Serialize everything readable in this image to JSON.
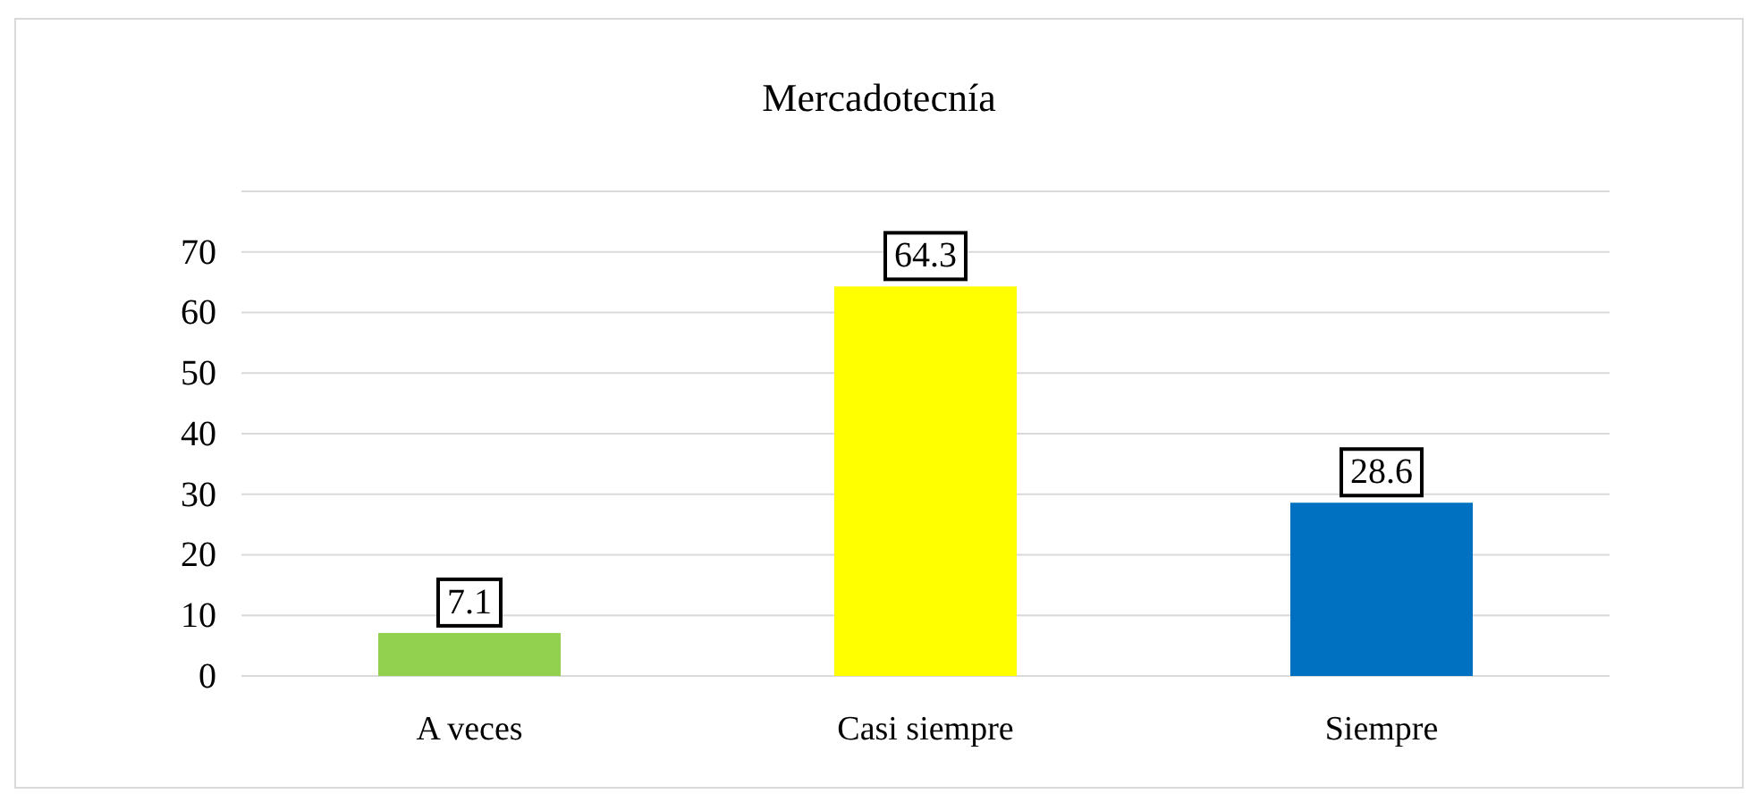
{
  "chart_data": {
    "type": "bar",
    "title": "Mercadotecnía",
    "categories": [
      "A veces",
      "Casi siempre",
      "Siempre"
    ],
    "values": [
      7.1,
      64.3,
      28.6
    ],
    "colors": [
      "#92d050",
      "#ffff00",
      "#0070c0"
    ],
    "ylim": [
      0,
      80
    ],
    "yticks": [
      0,
      10,
      20,
      30,
      40,
      50,
      60,
      70,
      {
        "value": 80,
        "label": null
      }
    ],
    "grid": true,
    "data_labels": true
  }
}
